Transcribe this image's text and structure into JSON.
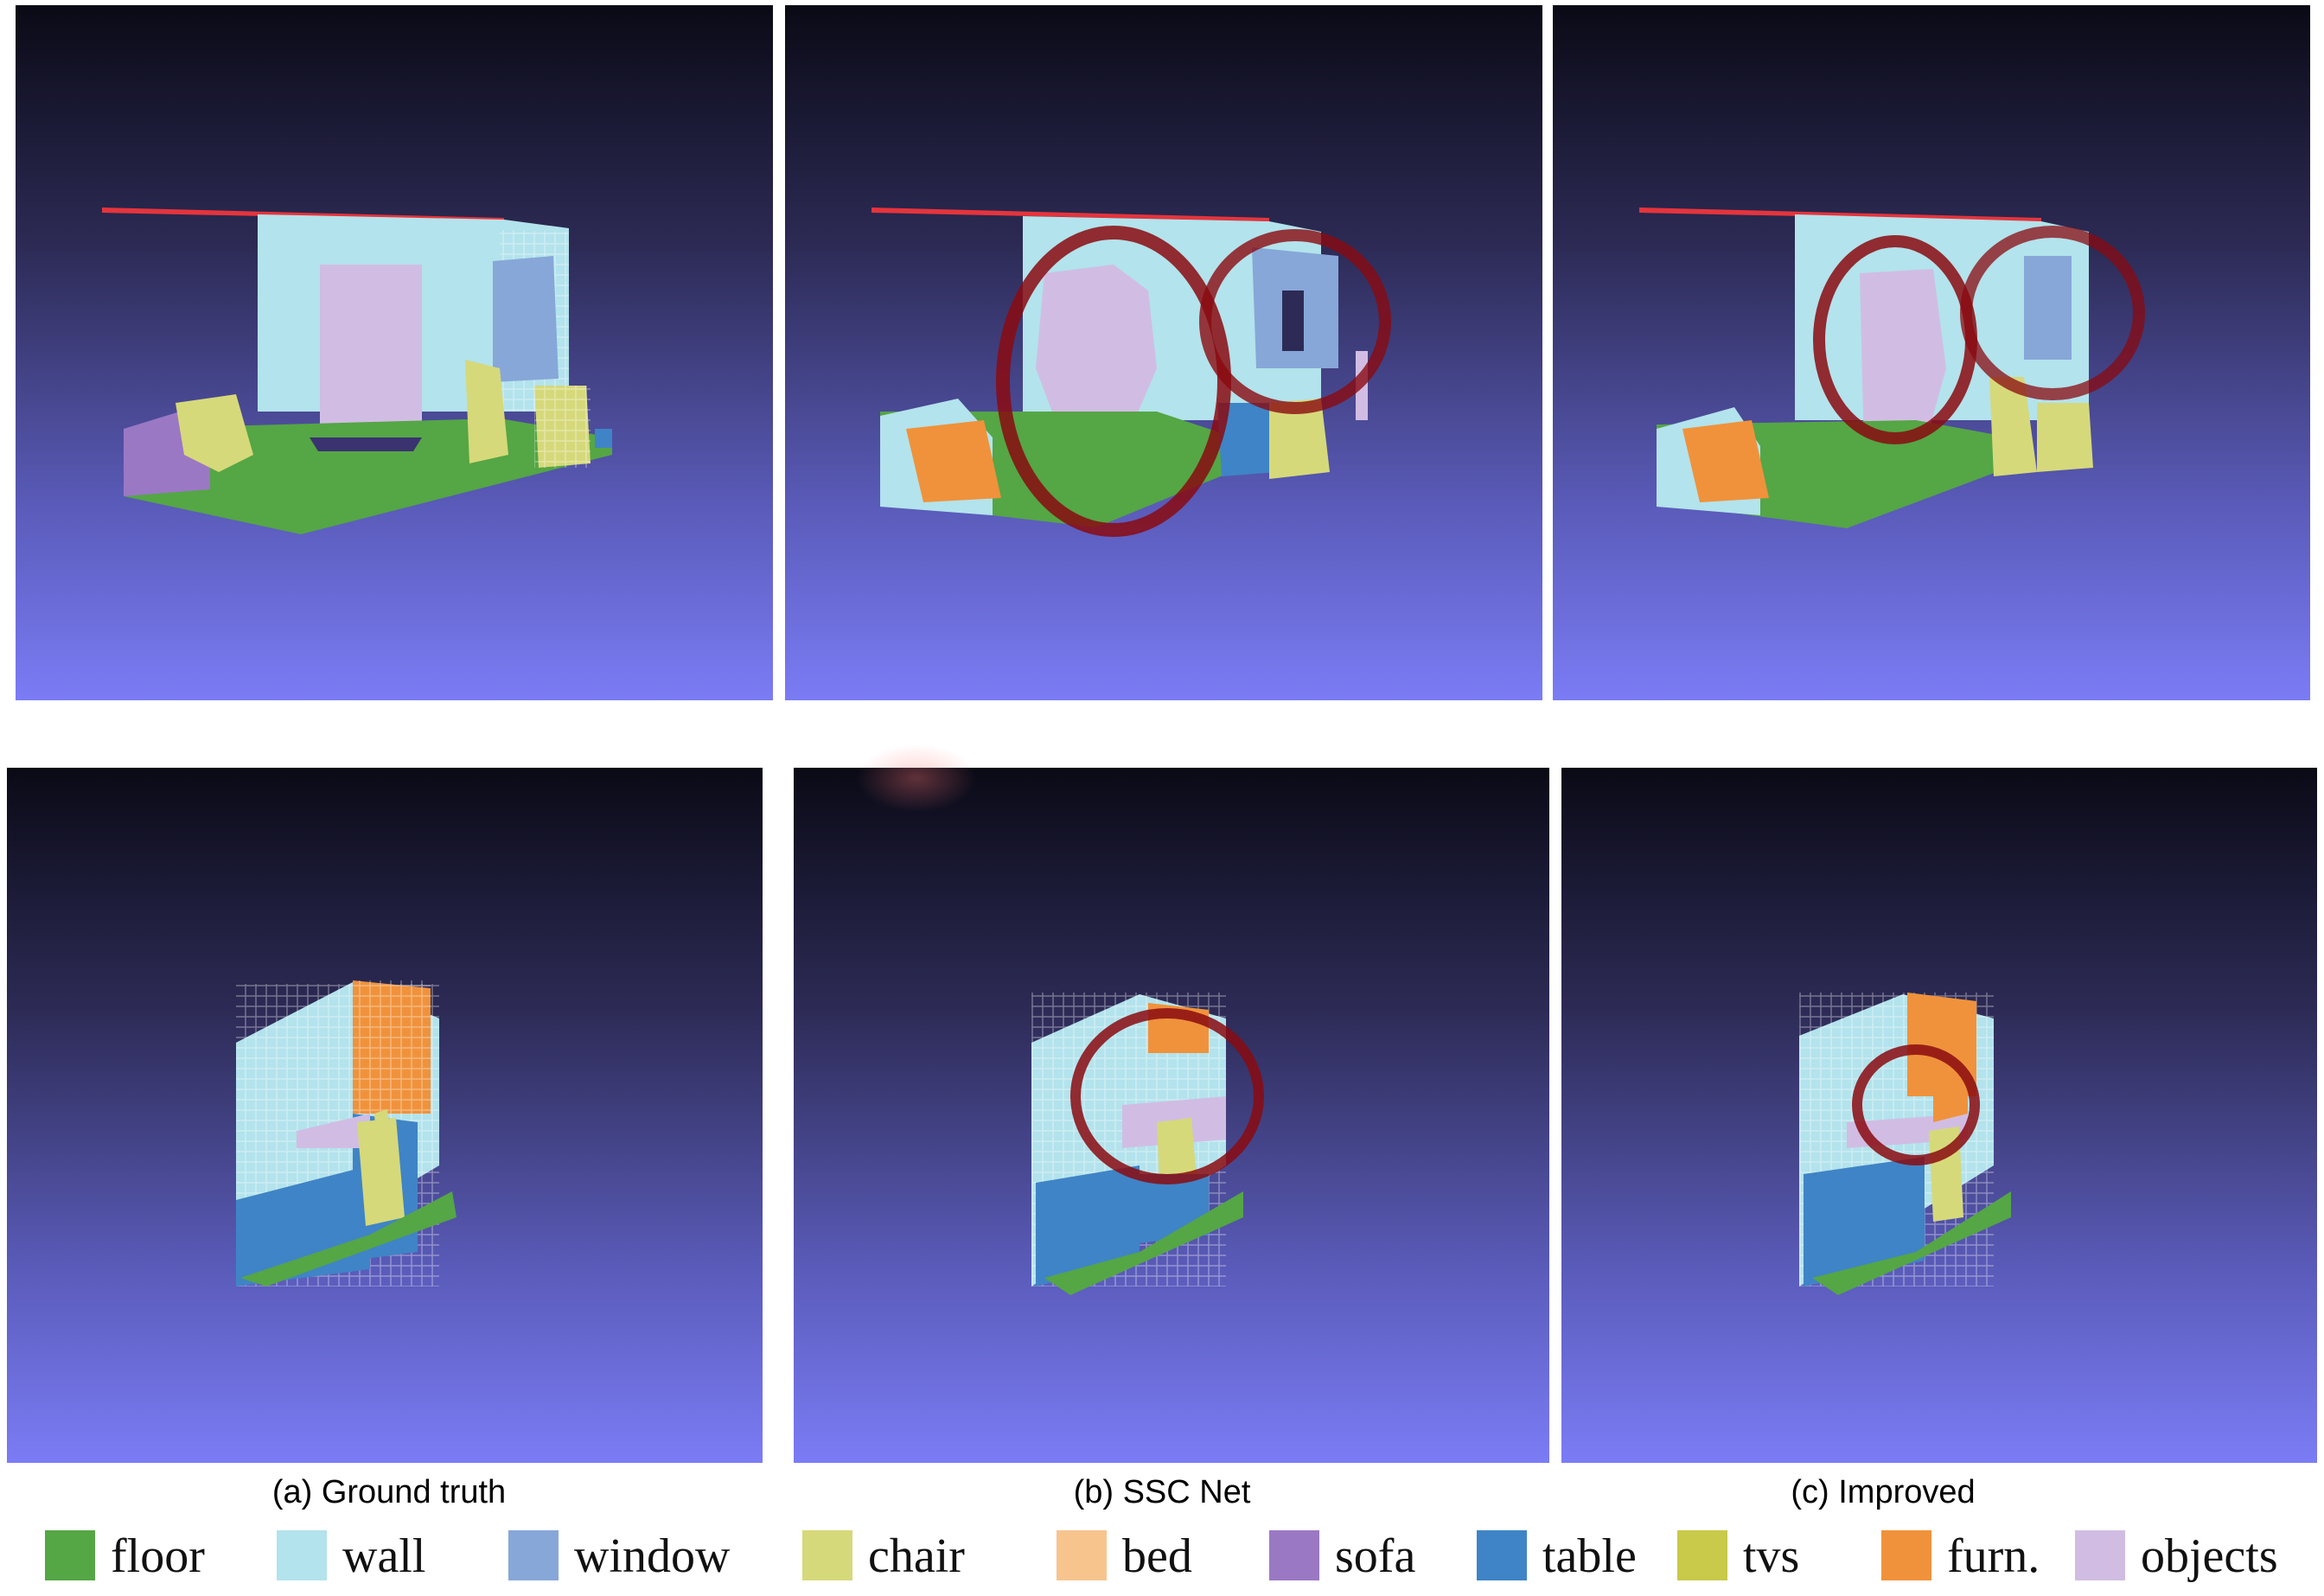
{
  "captions": {
    "a": "(a) Ground truth",
    "b": "(b) SSC Net",
    "c": "(c) Improved"
  },
  "legend": [
    {
      "label": "floor",
      "color": "#55a645"
    },
    {
      "label": "wall",
      "color": "#b3e3ec"
    },
    {
      "label": "window",
      "color": "#87a7d9"
    },
    {
      "label": "chair",
      "color": "#d6d97a"
    },
    {
      "label": "bed",
      "color": "#f7c48e"
    },
    {
      "label": "sofa",
      "color": "#9b78c4"
    },
    {
      "label": "table",
      "color": "#3f84c6"
    },
    {
      "label": "tvs",
      "color": "#c9c94a"
    },
    {
      "label": "furn.",
      "color": "#f0923b"
    },
    {
      "label": "objects",
      "color": "#d1bde3"
    }
  ]
}
